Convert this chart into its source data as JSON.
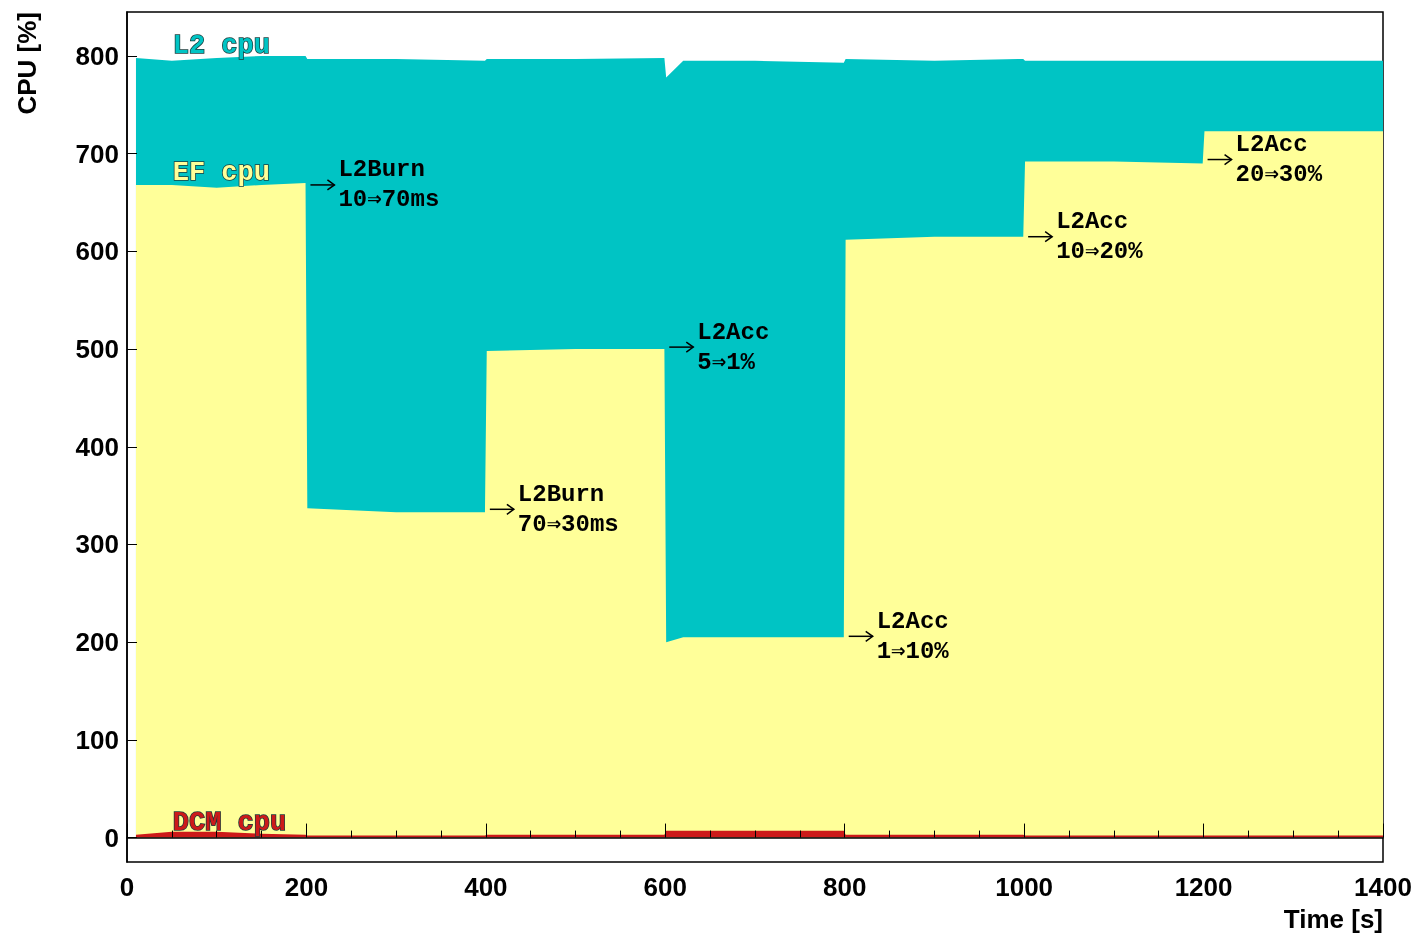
{
  "chart_data": {
    "type": "area",
    "stacked": true,
    "xlabel": "Time [s]",
    "ylabel": "CPU [%]",
    "x": [
      10,
      50,
      100,
      150,
      199,
      201,
      300,
      399,
      401,
      500,
      599,
      601,
      620,
      700,
      799,
      801,
      900,
      999,
      1001,
      1100,
      1199,
      1201,
      1300,
      1400
    ],
    "series": [
      {
        "name": "DCM cpu",
        "color": "#cc1a1a",
        "values": [
          3,
          6,
          6,
          4,
          3,
          2,
          2,
          2,
          3,
          3,
          3,
          7,
          7,
          7,
          7,
          3,
          3,
          3,
          2,
          2,
          2,
          2,
          2,
          2
        ]
      },
      {
        "name": "EF cpu",
        "color": "#ffff99",
        "values": [
          665,
          662,
          659,
          664,
          667,
          335,
          331,
          331,
          495,
          497,
          497,
          193,
          198,
          198,
          198,
          609,
          612,
          612,
          690,
          690,
          688,
          721,
          721,
          721
        ]
      },
      {
        "name": "L2 cpu",
        "color": "#00c4c4",
        "values": [
          130,
          127,
          133,
          132,
          130,
          460,
          464,
          462,
          299,
          297,
          298,
          578,
          590,
          590,
          588,
          185,
          180,
          182,
          103,
          103,
          105,
          72,
          72,
          72
        ]
      }
    ],
    "xlim": [
      0,
      1400
    ],
    "xticks": [
      0,
      200,
      400,
      600,
      800,
      1000,
      1200,
      1400
    ],
    "ylim": [
      -25,
      845
    ],
    "yticks": [
      0,
      100,
      200,
      300,
      400,
      500,
      600,
      700,
      800
    ],
    "legend": false,
    "annotations": [
      {
        "text": "L2Burn\n10⇒70ms",
        "x": 200,
        "y": 668
      },
      {
        "text": "L2Burn\n70⇒30ms",
        "x": 400,
        "y": 336
      },
      {
        "text": "L2Acc\n5⇒1%",
        "x": 600,
        "y": 502
      },
      {
        "text": "L2Acc\n1⇒10%",
        "x": 800,
        "y": 206
      },
      {
        "text": "L2Acc\n10⇒20%",
        "x": 1000,
        "y": 615
      },
      {
        "text": "L2Acc\n20⇒30%",
        "x": 1200,
        "y": 694
      }
    ]
  }
}
